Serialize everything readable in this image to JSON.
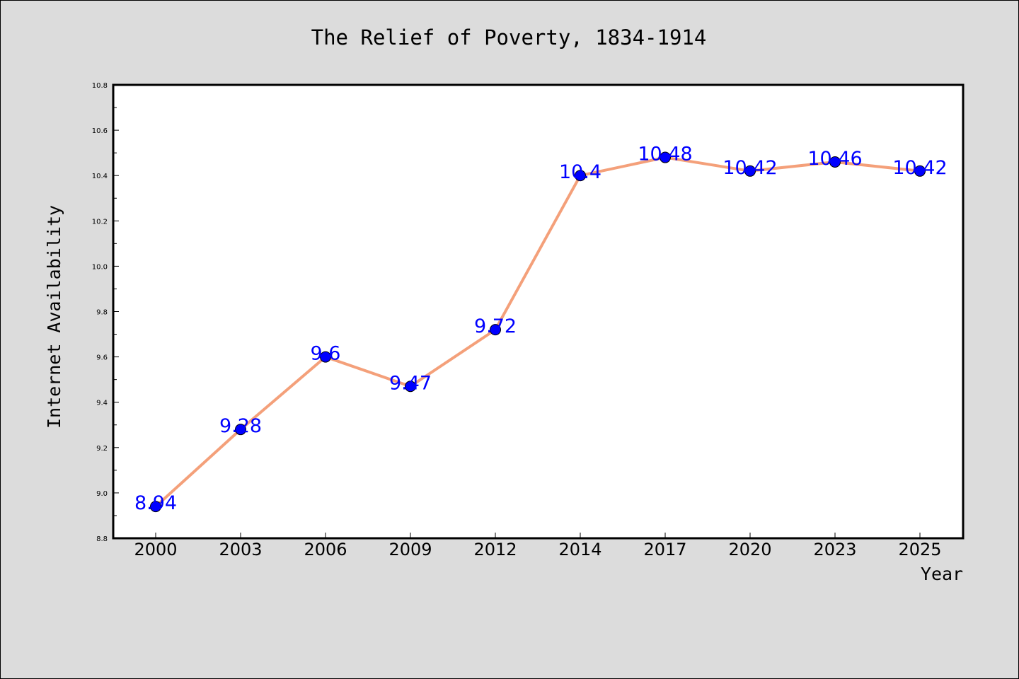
{
  "chart_data": {
    "type": "line",
    "title": "The Relief of Poverty, 1834-1914",
    "xlabel": "Year",
    "ylabel": "Internet Availability",
    "categories": [
      "2000",
      "2003",
      "2006",
      "2009",
      "2012",
      "2014",
      "2017",
      "2020",
      "2023",
      "2025"
    ],
    "values": [
      8.94,
      9.28,
      9.6,
      9.47,
      9.72,
      10.4,
      10.48,
      10.42,
      10.46,
      10.42
    ],
    "data_labels": [
      "8.94",
      "9.28",
      "9.6",
      "9.47",
      "9.72",
      "10.4",
      "10.48",
      "10.42",
      "10.46",
      "10.42"
    ],
    "ylim": [
      8.8,
      10.8
    ],
    "yticks": [
      "8.8",
      "9.0",
      "9.2",
      "9.4",
      "9.6",
      "9.8",
      "10.0",
      "10.2",
      "10.4",
      "10.6",
      "10.8"
    ],
    "grid": false,
    "line_color": "#f4a07a",
    "marker_color": "#0000ff",
    "label_color": "#0000ff",
    "plot_background": "#ffffff",
    "figure_background": "#dcdcdc"
  }
}
